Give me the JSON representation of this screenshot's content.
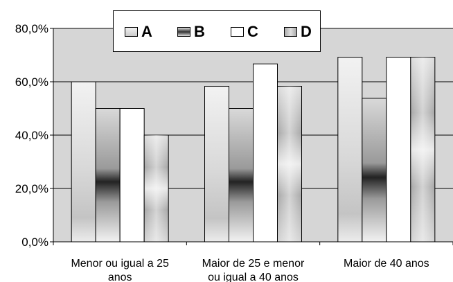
{
  "chart_data": {
    "type": "bar",
    "categories": [
      [
        "Menor ou igual a 25",
        "anos"
      ],
      [
        "Maior de 25 e menor",
        "ou igual a 40 anos"
      ],
      [
        "Maior de 40 anos"
      ]
    ],
    "series": [
      {
        "name": "A",
        "values": [
          60.0,
          58.3,
          69.2
        ],
        "pattern": "light-gradient"
      },
      {
        "name": "B",
        "values": [
          50.0,
          50.0,
          53.8
        ],
        "pattern": "dark-horizontal-gradient"
      },
      {
        "name": "C",
        "values": [
          50.0,
          66.7,
          69.2
        ],
        "pattern": "white"
      },
      {
        "name": "D",
        "values": [
          40.0,
          58.3,
          69.2
        ],
        "pattern": "vertical-gradient"
      }
    ],
    "yticks": [
      "0,0%",
      "20,0%",
      "40,0%",
      "60,0%",
      "80,0%"
    ],
    "ylim": [
      0,
      80
    ],
    "grid": true,
    "legend_position": "top",
    "plot_background": "#d6d6d6",
    "colors": {
      "A": "#e4e4e4",
      "B": "#8c8c8c",
      "C": "#ffffff",
      "D": "#b8b8b8"
    }
  }
}
